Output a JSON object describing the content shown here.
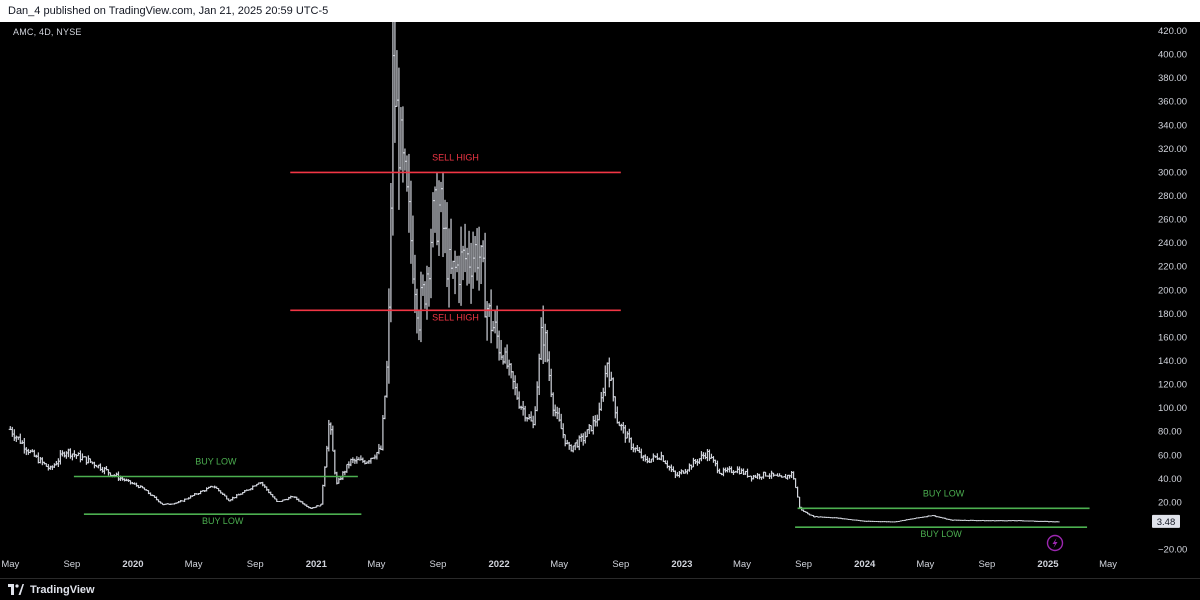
{
  "header": {
    "published": "Dan_4 published on TradingView.com, Jan 21, 2025 20:59 UTC-5"
  },
  "symbol_label": "AMC, 4D, NYSE",
  "footer": {
    "brand": "TradingView",
    "logo_icon": "tradingview-logo-icon"
  },
  "price_badge": "3.48",
  "flash_icon": "lightning-icon",
  "colors": {
    "background": "#000000",
    "bars": "#d1d4dc",
    "sell_lines": "#f23645",
    "buy_lines": "#4caf50",
    "axis_text": "#d1d4dc",
    "flash_icon": "#9c27b0"
  },
  "chart_data": {
    "type": "bar",
    "chart_style": "ohlc",
    "symbol": "AMC",
    "interval": "4D",
    "exchange": "NYSE",
    "y_axis_side": "right",
    "ylim": [
      -20,
      420
    ],
    "y_ticks": [
      -20.0,
      0.0,
      20.0,
      40.0,
      60.0,
      80.0,
      100.0,
      120.0,
      140.0,
      160.0,
      180.0,
      200.0,
      220.0,
      240.0,
      260.0,
      280.0,
      300.0,
      320.0,
      340.0,
      360.0,
      380.0,
      400.0,
      420.0
    ],
    "y_tick_labels": [
      "−20.00",
      "",
      "20.00",
      "40.00",
      "60.00",
      "80.00",
      "100.00",
      "120.00",
      "140.00",
      "160.00",
      "180.00",
      "200.00",
      "220.00",
      "240.00",
      "260.00",
      "280.00",
      "300.00",
      "320.00",
      "340.00",
      "360.00",
      "380.00",
      "400.00",
      "420.00"
    ],
    "x_range": [
      "2019-05-01",
      "2025-05-15"
    ],
    "x_ticks": [
      {
        "date": "2019-05-01",
        "label": "May"
      },
      {
        "date": "2019-09-01",
        "label": "Sep"
      },
      {
        "date": "2020-01-01",
        "label": "2020"
      },
      {
        "date": "2020-05-01",
        "label": "May"
      },
      {
        "date": "2020-09-01",
        "label": "Sep"
      },
      {
        "date": "2021-01-01",
        "label": "2021"
      },
      {
        "date": "2021-05-01",
        "label": "May"
      },
      {
        "date": "2021-09-01",
        "label": "Sep"
      },
      {
        "date": "2022-01-01",
        "label": "2022"
      },
      {
        "date": "2022-05-01",
        "label": "May"
      },
      {
        "date": "2022-09-01",
        "label": "Sep"
      },
      {
        "date": "2023-01-01",
        "label": "2023"
      },
      {
        "date": "2023-05-01",
        "label": "May"
      },
      {
        "date": "2023-09-01",
        "label": "Sep"
      },
      {
        "date": "2024-01-01",
        "label": "2024"
      },
      {
        "date": "2024-05-01",
        "label": "May"
      },
      {
        "date": "2024-09-01",
        "label": "Sep"
      },
      {
        "date": "2025-01-01",
        "label": "2025"
      },
      {
        "date": "2025-05-01",
        "label": "May"
      }
    ],
    "bold_tick_labels": [
      "2020",
      "2021",
      "2022",
      "2023",
      "2024",
      "2025"
    ],
    "series": [
      {
        "approximate_trend": [
          {
            "x": "2019-05-01",
            "y": 82
          },
          {
            "x": "2019-06-15",
            "y": 60
          },
          {
            "x": "2019-07-20",
            "y": 48
          },
          {
            "x": "2019-08-20",
            "y": 64
          },
          {
            "x": "2019-09-20",
            "y": 58
          },
          {
            "x": "2019-10-20",
            "y": 52
          },
          {
            "x": "2019-11-20",
            "y": 44
          },
          {
            "x": "2019-12-20",
            "y": 38
          },
          {
            "x": "2020-01-20",
            "y": 32
          },
          {
            "x": "2020-03-01",
            "y": 18
          },
          {
            "x": "2020-04-01",
            "y": 20
          },
          {
            "x": "2020-05-10",
            "y": 28
          },
          {
            "x": "2020-06-10",
            "y": 34
          },
          {
            "x": "2020-07-10",
            "y": 22
          },
          {
            "x": "2020-08-15",
            "y": 30
          },
          {
            "x": "2020-09-10",
            "y": 38
          },
          {
            "x": "2020-10-15",
            "y": 20
          },
          {
            "x": "2020-11-15",
            "y": 25
          },
          {
            "x": "2020-12-20",
            "y": 15
          },
          {
            "x": "2021-01-10",
            "y": 18
          },
          {
            "x": "2021-01-27",
            "y": 90
          },
          {
            "x": "2021-02-10",
            "y": 35
          },
          {
            "x": "2021-03-10",
            "y": 55
          },
          {
            "x": "2021-04-10",
            "y": 55
          },
          {
            "x": "2021-05-10",
            "y": 65
          },
          {
            "x": "2021-05-25",
            "y": 150
          },
          {
            "x": "2021-06-03",
            "y": 380
          },
          {
            "x": "2021-06-20",
            "y": 310
          },
          {
            "x": "2021-07-10",
            "y": 240
          },
          {
            "x": "2021-07-25",
            "y": 180
          },
          {
            "x": "2021-08-05",
            "y": 200
          },
          {
            "x": "2021-08-20",
            "y": 255
          },
          {
            "x": "2021-09-05",
            "y": 270
          },
          {
            "x": "2021-09-25",
            "y": 210
          },
          {
            "x": "2021-10-20",
            "y": 225
          },
          {
            "x": "2021-11-20",
            "y": 235
          },
          {
            "x": "2021-12-10",
            "y": 180
          },
          {
            "x": "2022-01-10",
            "y": 145
          },
          {
            "x": "2022-02-10",
            "y": 105
          },
          {
            "x": "2022-03-10",
            "y": 85
          },
          {
            "x": "2022-03-29",
            "y": 170
          },
          {
            "x": "2022-04-20",
            "y": 100
          },
          {
            "x": "2022-05-20",
            "y": 65
          },
          {
            "x": "2022-06-20",
            "y": 75
          },
          {
            "x": "2022-07-20",
            "y": 95
          },
          {
            "x": "2022-08-05",
            "y": 140
          },
          {
            "x": "2022-08-25",
            "y": 90
          },
          {
            "x": "2022-09-20",
            "y": 70
          },
          {
            "x": "2022-10-20",
            "y": 55
          },
          {
            "x": "2022-11-20",
            "y": 60
          },
          {
            "x": "2022-12-20",
            "y": 42
          },
          {
            "x": "2023-01-20",
            "y": 52
          },
          {
            "x": "2023-02-20",
            "y": 62
          },
          {
            "x": "2023-03-20",
            "y": 45
          },
          {
            "x": "2023-04-20",
            "y": 48
          },
          {
            "x": "2023-05-20",
            "y": 42
          },
          {
            "x": "2023-06-20",
            "y": 44
          },
          {
            "x": "2023-07-20",
            "y": 40
          },
          {
            "x": "2023-08-10",
            "y": 45
          },
          {
            "x": "2023-08-25",
            "y": 14
          },
          {
            "x": "2023-09-20",
            "y": 8
          },
          {
            "x": "2023-11-01",
            "y": 7
          },
          {
            "x": "2024-01-01",
            "y": 4
          },
          {
            "x": "2024-03-01",
            "y": 3.5
          },
          {
            "x": "2024-05-14",
            "y": 9
          },
          {
            "x": "2024-06-20",
            "y": 5
          },
          {
            "x": "2024-09-01",
            "y": 4.5
          },
          {
            "x": "2024-11-01",
            "y": 4.5
          },
          {
            "x": "2025-01-21",
            "y": 3.48
          }
        ]
      }
    ],
    "last_price": 3.48,
    "annotations": [
      {
        "type": "hline",
        "label": "SELL HIGH",
        "y": 300,
        "x_start": "2020-11-10",
        "x_end": "2022-09-01",
        "color": "#f23645"
      },
      {
        "type": "hline",
        "label": "SELL HIGH",
        "y": 183,
        "x_start": "2020-11-10",
        "x_end": "2022-09-01",
        "color": "#f23645"
      },
      {
        "type": "hline",
        "label": "BUY LOW",
        "y": 42,
        "x_start": "2019-09-05",
        "x_end": "2021-03-25",
        "color": "#4caf50"
      },
      {
        "type": "hline",
        "label": "BUY LOW",
        "y": 10,
        "x_start": "2019-09-25",
        "x_end": "2021-04-01",
        "color": "#4caf50"
      },
      {
        "type": "hline",
        "label": "BUY LOW",
        "y": 15,
        "x_start": "2023-08-20",
        "x_end": "2025-03-25",
        "color": "#4caf50"
      },
      {
        "type": "hline",
        "label": "BUY LOW",
        "y": -1,
        "x_start": "2023-08-15",
        "x_end": "2025-03-20",
        "color": "#4caf50"
      }
    ]
  }
}
